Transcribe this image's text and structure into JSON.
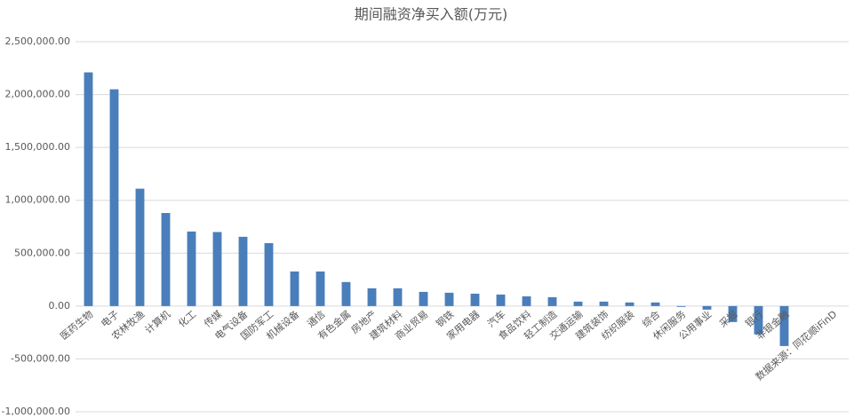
{
  "chart_data": {
    "type": "bar",
    "title": "期间融资净买入额(万元)",
    "source": "数据来源：同花顺iFinD",
    "categories": [
      "医药生物",
      "电子",
      "农林牧渔",
      "计算机",
      "化工",
      "传媒",
      "电气设备",
      "国防军工",
      "机械设备",
      "通信",
      "有色金属",
      "房地产",
      "建筑材料",
      "商业贸易",
      "钢铁",
      "家用电器",
      "汽车",
      "食品饮料",
      "轻工制造",
      "交通运输",
      "建筑装饰",
      "纺织服装",
      "综合",
      "休闲服务",
      "公用事业",
      "采掘",
      "银行",
      "非银金融"
    ],
    "values": [
      2210000,
      2050000,
      1110000,
      880000,
      705000,
      700000,
      655000,
      595000,
      327000,
      327000,
      227000,
      168000,
      168000,
      134000,
      126000,
      117000,
      109000,
      92000,
      84000,
      42000,
      42000,
      34000,
      34000,
      -8000,
      -34000,
      -151000,
      -268000,
      -378000
    ],
    "color": "#4a7ebb",
    "ylim": [
      -1000000,
      2500000
    ],
    "yticks": [
      {
        "value": -1000000,
        "label": "-1,000,000.00"
      },
      {
        "value": -500000,
        "label": "-500,000.00"
      },
      {
        "value": 0,
        "label": "0.00"
      },
      {
        "value": 500000,
        "label": "500,000.00"
      },
      {
        "value": 1000000,
        "label": "1,000,000.00"
      },
      {
        "value": 1500000,
        "label": "1,500,000.00"
      },
      {
        "value": 2000000,
        "label": "2,000,000.00"
      },
      {
        "value": 2500000,
        "label": "2,500,000.00"
      }
    ],
    "grid": true
  }
}
